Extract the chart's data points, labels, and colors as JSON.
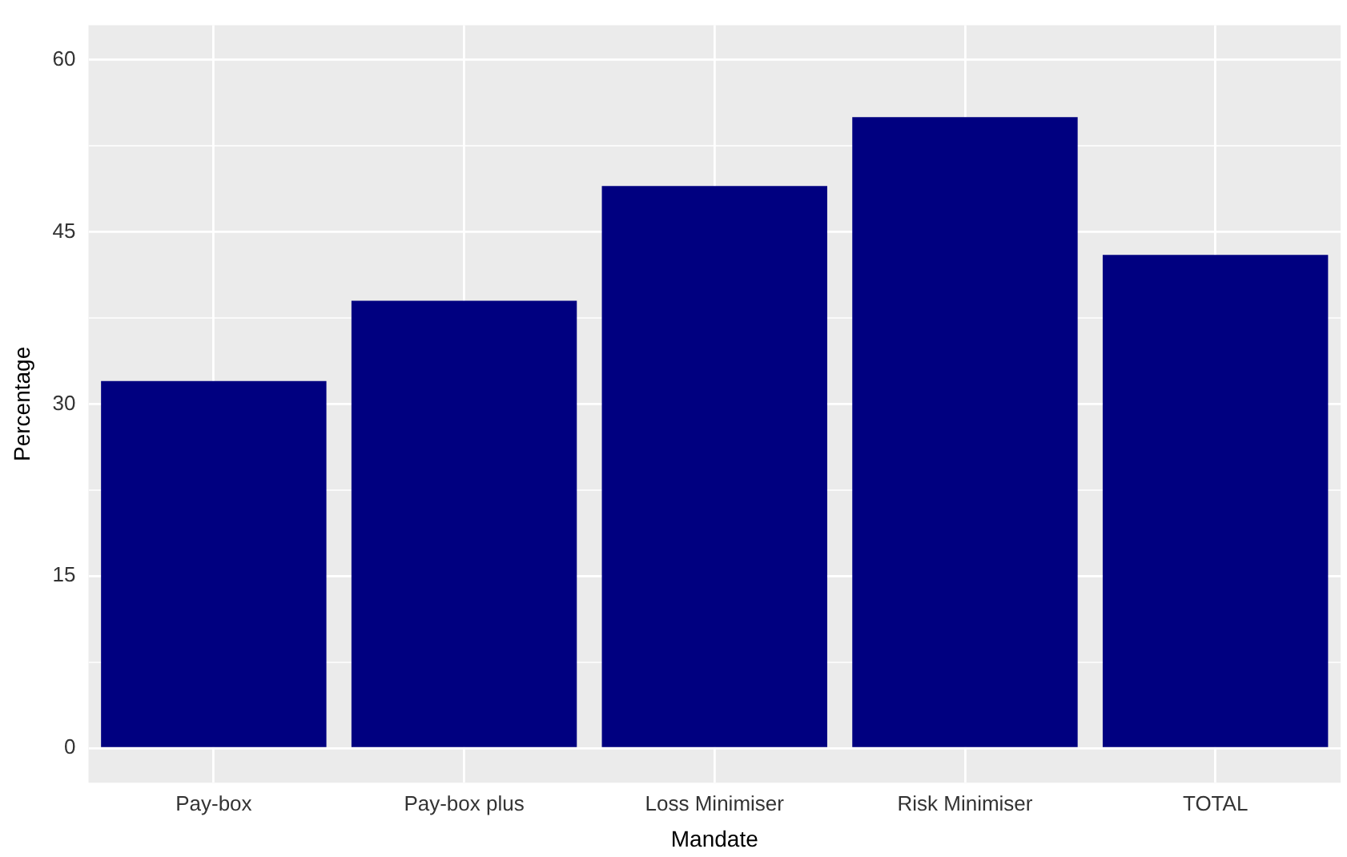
{
  "chart_data": {
    "type": "bar",
    "xlabel": "Mandate",
    "ylabel": "Percentage",
    "categories": [
      "Pay-box",
      "Pay-box plus",
      "Loss Minimiser",
      "Risk Minimiser",
      "TOTAL"
    ],
    "values": [
      32,
      39,
      49,
      55,
      43
    ],
    "color": "#000080",
    "ylim": [
      -3,
      63
    ],
    "yticks": [
      {
        "value": 7.5,
        "label": null
      },
      {
        "value": 22.5,
        "label": null
      },
      {
        "value": 37.5,
        "label": null
      },
      {
        "value": 52.5,
        "label": null
      },
      0,
      15,
      30,
      45,
      60
    ],
    "grid": true,
    "legend": false
  }
}
